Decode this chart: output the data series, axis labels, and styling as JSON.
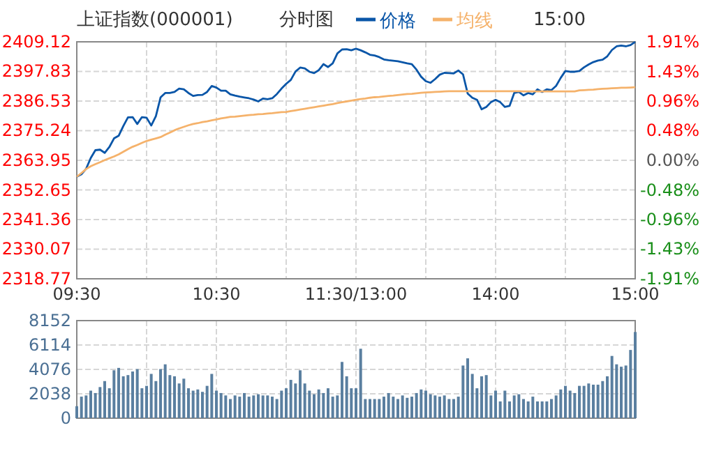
{
  "chart_data": [
    {
      "type": "line",
      "title": "上证指数(000001)",
      "subtitle": "分时图",
      "annotations": [
        "15:00"
      ],
      "legend": "top",
      "grid": true,
      "categories": [
        "09:30",
        null,
        null,
        null,
        null,
        null,
        null,
        null,
        null,
        null,
        null,
        null,
        null,
        null,
        null,
        null,
        null,
        null,
        null,
        null,
        null,
        null,
        null,
        null,
        null,
        null,
        null,
        null,
        null,
        null,
        "10:30",
        null,
        null,
        null,
        null,
        null,
        null,
        null,
        null,
        null,
        null,
        null,
        null,
        null,
        null,
        null,
        null,
        null,
        null,
        null,
        null,
        null,
        null,
        null,
        null,
        null,
        null,
        null,
        null,
        null,
        "11:30/13:00",
        null,
        null,
        null,
        null,
        null,
        null,
        null,
        null,
        null,
        null,
        null,
        null,
        null,
        null,
        null,
        null,
        null,
        null,
        null,
        null,
        null,
        null,
        null,
        null,
        null,
        null,
        null,
        null,
        null,
        "14:00",
        null,
        null,
        null,
        null,
        null,
        null,
        null,
        null,
        null,
        null,
        null,
        null,
        null,
        null,
        null,
        null,
        null,
        null,
        null,
        null,
        null,
        null,
        null,
        null,
        null,
        null,
        null,
        null,
        null,
        "15:00"
      ],
      "ylim": [
        2318.77,
        2409.12
      ],
      "yticks": [
        2318.77,
        2330.07,
        2341.36,
        2352.65,
        2363.95,
        2375.24,
        2386.53,
        2397.83,
        2409.12
      ],
      "y2lim": [
        -1.91,
        1.91
      ],
      "y2ticks": [
        {
          "value": -1.91,
          "label": "-1.91%"
        },
        {
          "value": -1.43,
          "label": "-1.43%"
        },
        {
          "value": -0.96,
          "label": "-0.96%"
        },
        {
          "value": -0.48,
          "label": "-0.48%"
        },
        {
          "value": 0,
          "label": "0.00%"
        },
        {
          "value": 0.48,
          "label": "0.48%"
        },
        {
          "value": 0.96,
          "label": "0.96%"
        },
        {
          "value": 1.43,
          "label": "1.43%"
        },
        {
          "value": 1.91,
          "label": "1.91%"
        }
      ],
      "series": [
        {
          "name": "价格",
          "color": "#0a56a8",
          "values": [
            2357.7,
            2358.6,
            2360.7,
            2364.8,
            2367.8,
            2368.0,
            2366.8,
            2369.0,
            2372.3,
            2373.3,
            2377.0,
            2380.3,
            2380.4,
            2377.8,
            2380.4,
            2380.2,
            2377.2,
            2380.8,
            2387.9,
            2389.6,
            2389.6,
            2390.0,
            2391.3,
            2391.0,
            2389.6,
            2388.5,
            2388.8,
            2388.9,
            2390.0,
            2392.3,
            2391.7,
            2390.5,
            2390.5,
            2389.1,
            2388.6,
            2388.2,
            2387.9,
            2387.6,
            2387.1,
            2386.4,
            2387.5,
            2387.2,
            2387.6,
            2389.2,
            2391.3,
            2393.1,
            2394.6,
            2397.8,
            2399.3,
            2399.0,
            2397.7,
            2397.2,
            2398.3,
            2400.6,
            2399.5,
            2400.9,
            2404.7,
            2406.2,
            2406.3,
            2405.9,
            2406.5,
            2405.9,
            2405.1,
            2404.2,
            2403.9,
            2403.3,
            2402.4,
            2402.1,
            2401.9,
            2401.7,
            2401.3,
            2400.9,
            2400.6,
            2398.5,
            2395.8,
            2394.1,
            2393.5,
            2394.9,
            2396.6,
            2397.3,
            2397.2,
            2397.1,
            2398.2,
            2396.7,
            2389.4,
            2387.8,
            2387.0,
            2383.4,
            2384.3,
            2386.1,
            2387.0,
            2386.1,
            2384.3,
            2384.7,
            2389.6,
            2390.0,
            2388.7,
            2389.6,
            2389.1,
            2391.0,
            2390.0,
            2391.0,
            2390.7,
            2392.3,
            2395.4,
            2398.0,
            2397.7,
            2397.7,
            2398.0,
            2399.4,
            2400.5,
            2401.4,
            2402.0,
            2402.3,
            2403.6,
            2406.0,
            2407.4,
            2407.7,
            2407.4,
            2407.9,
            2409.1
          ]
        },
        {
          "name": "均线",
          "color": "#f5b26b",
          "values": [
            2357.7,
            2359.1,
            2360.6,
            2361.7,
            2362.5,
            2363.2,
            2364.0,
            2364.7,
            2365.4,
            2366.2,
            2367.2,
            2368.2,
            2369.1,
            2369.8,
            2370.6,
            2371.3,
            2371.8,
            2372.3,
            2372.8,
            2373.7,
            2374.5,
            2375.4,
            2376.1,
            2376.7,
            2377.3,
            2377.8,
            2378.1,
            2378.5,
            2378.8,
            2379.2,
            2379.5,
            2379.9,
            2380.2,
            2380.5,
            2380.6,
            2380.8,
            2381.0,
            2381.2,
            2381.3,
            2381.5,
            2381.6,
            2381.8,
            2381.9,
            2382.1,
            2382.3,
            2382.4,
            2382.7,
            2383.0,
            2383.3,
            2383.6,
            2383.9,
            2384.2,
            2384.5,
            2384.8,
            2385.1,
            2385.4,
            2385.8,
            2386.1,
            2386.4,
            2386.7,
            2387.0,
            2387.3,
            2387.5,
            2387.8,
            2388.0,
            2388.1,
            2388.3,
            2388.5,
            2388.6,
            2388.8,
            2389.0,
            2389.2,
            2389.3,
            2389.5,
            2389.7,
            2389.8,
            2389.9,
            2390.0,
            2390.1,
            2390.2,
            2390.3,
            2390.3,
            2390.3,
            2390.3,
            2390.3,
            2390.3,
            2390.3,
            2390.3,
            2390.3,
            2390.3,
            2390.3,
            2390.3,
            2390.3,
            2390.3,
            2390.3,
            2390.3,
            2390.2,
            2390.2,
            2390.2,
            2390.2,
            2390.2,
            2390.2,
            2390.2,
            2390.2,
            2390.2,
            2390.2,
            2390.2,
            2390.2,
            2390.6,
            2390.7,
            2390.8,
            2390.9,
            2391.1,
            2391.2,
            2391.3,
            2391.4,
            2391.5,
            2391.6,
            2391.6,
            2391.7,
            2391.8
          ]
        }
      ]
    },
    {
      "type": "bar",
      "grid": true,
      "color": "#5a7fa0",
      "categories": [
        null,
        null,
        null,
        null,
        null,
        null,
        null,
        null,
        null,
        null,
        null,
        null,
        null,
        null,
        null,
        null,
        null,
        null,
        null,
        null,
        null,
        null,
        null,
        null,
        null,
        null,
        null,
        null,
        null,
        null,
        null,
        null,
        null,
        null,
        null,
        null,
        null,
        null,
        null,
        null,
        null,
        null,
        null,
        null,
        null,
        null,
        null,
        null,
        null,
        null,
        null,
        null,
        null,
        null,
        null,
        null,
        null,
        null,
        null,
        null,
        null,
        null,
        null,
        null,
        null,
        null,
        null,
        null,
        null,
        null,
        null,
        null,
        null,
        null,
        null,
        null,
        null,
        null,
        null,
        null,
        null,
        null,
        null,
        null,
        null,
        null,
        null,
        null,
        null,
        null,
        null,
        null,
        null,
        null,
        null,
        null,
        null,
        null,
        null,
        null,
        null,
        null,
        null,
        null,
        null,
        null,
        null,
        null,
        null,
        null,
        null,
        null,
        null,
        null,
        null,
        null,
        null,
        null,
        null,
        null,
        null
      ],
      "ylim": [
        0,
        8152
      ],
      "yticks": [
        0,
        2038,
        4076,
        6114,
        8152
      ],
      "values": [
        1000,
        1800,
        1900,
        2300,
        2100,
        2600,
        3100,
        2500,
        4000,
        4200,
        3500,
        3600,
        3900,
        4100,
        2500,
        2700,
        3700,
        3100,
        4100,
        4500,
        3600,
        3500,
        2900,
        3300,
        2500,
        2300,
        2400,
        2200,
        2700,
        3700,
        2300,
        2100,
        1900,
        1600,
        1900,
        1800,
        2100,
        1800,
        1900,
        2000,
        1900,
        1900,
        1800,
        1600,
        2300,
        2500,
        3200,
        2900,
        4000,
        2900,
        2300,
        2000,
        2400,
        2100,
        2500,
        1800,
        1900,
        4700,
        3500,
        2500,
        2500,
        5800,
        1600,
        1600,
        1600,
        1600,
        1800,
        2100,
        1800,
        1600,
        1900,
        1700,
        1800,
        2100,
        2400,
        2300,
        2000,
        1900,
        1800,
        1900,
        1600,
        1600,
        1800,
        4400,
        5000,
        3700,
        2500,
        3500,
        3600,
        1900,
        2300,
        1400,
        2300,
        1400,
        1900,
        2000,
        1600,
        1400,
        1800,
        1400,
        1400,
        1400,
        1600,
        1900,
        2400,
        2700,
        2300,
        2100,
        2700,
        2700,
        2900,
        2800,
        2800,
        3100,
        3500,
        5200,
        4500,
        4300,
        4400,
        5700,
        7200
      ]
    }
  ]
}
